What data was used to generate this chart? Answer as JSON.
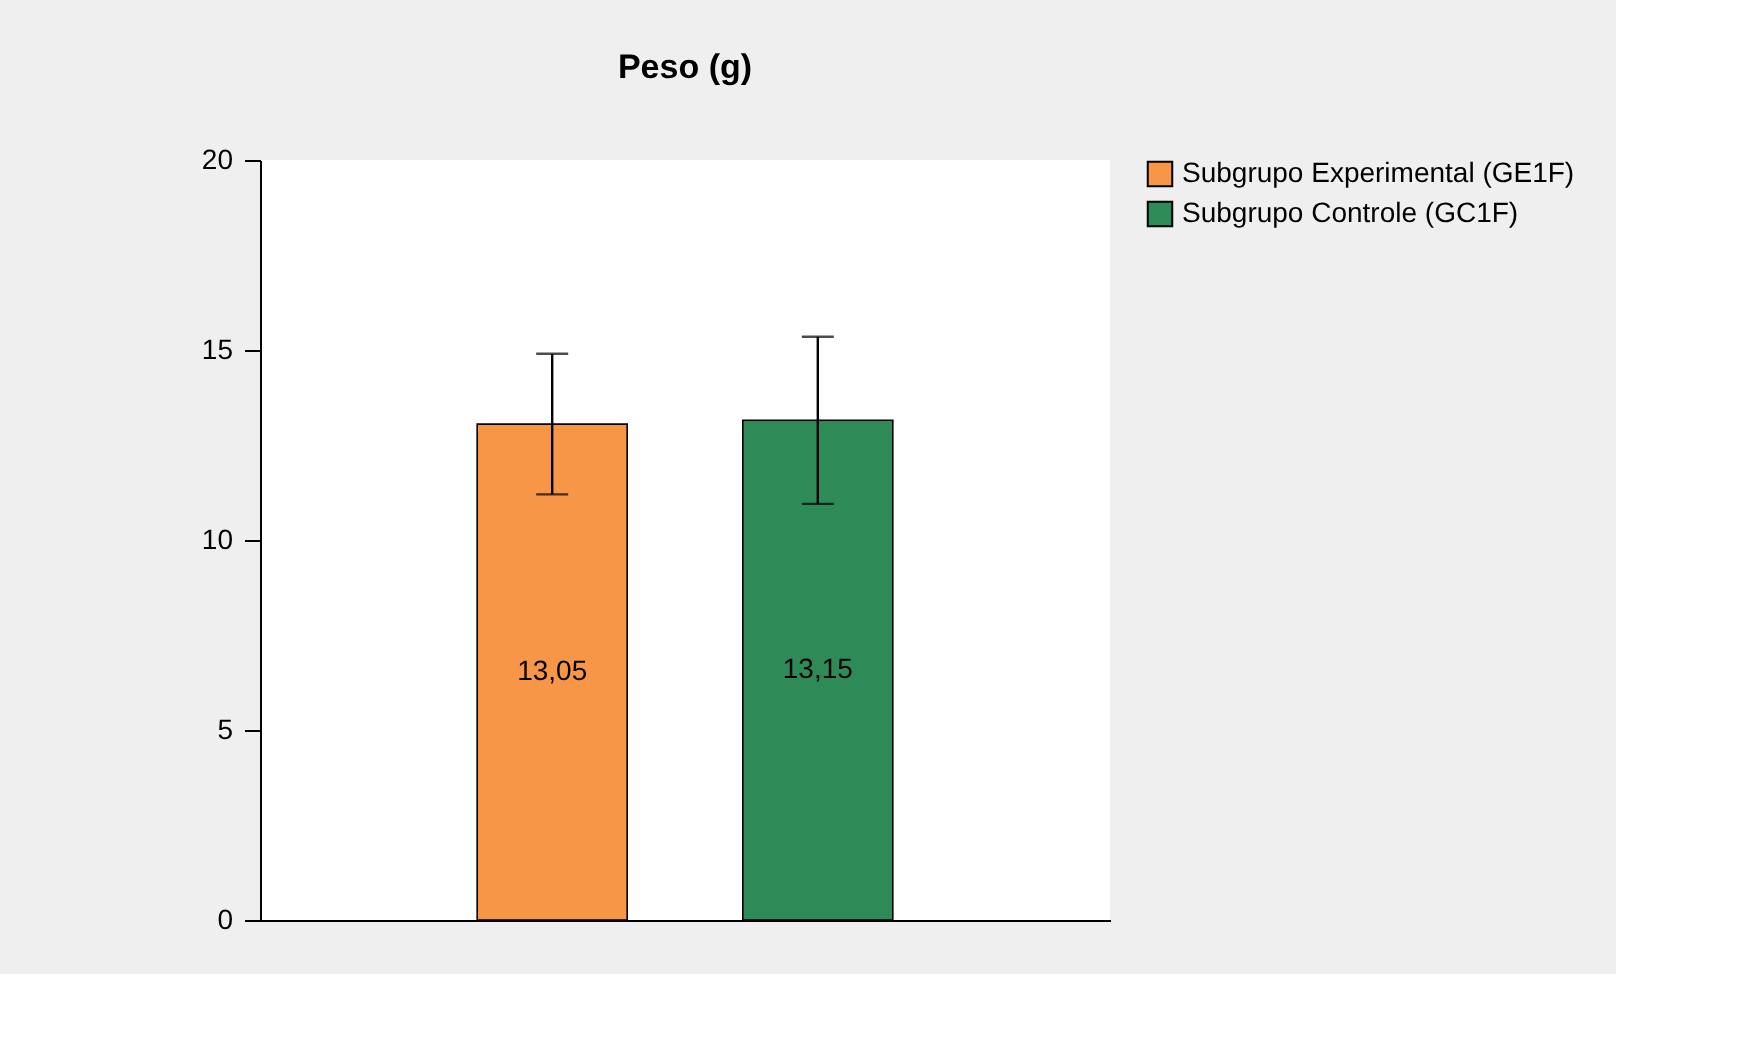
{
  "chart_data": {
    "type": "bar",
    "title": "Peso (g)",
    "categories": [
      null
    ],
    "series": [
      {
        "name": "Subgrupo Experimental (GE1F)",
        "color": "#f79646",
        "values": [
          13.05
        ],
        "errors": [
          1.85
        ],
        "value_labels": [
          "13,05"
        ]
      },
      {
        "name": "Subgrupo Controle (GC1F)",
        "color": "#2e8b57",
        "values": [
          13.15
        ],
        "errors": [
          2.2
        ],
        "value_labels": [
          "13,15"
        ]
      }
    ],
    "ylim": [
      0,
      20
    ],
    "yticks": [
      0,
      5,
      10,
      15,
      20
    ],
    "grid": false,
    "legend": "right"
  }
}
